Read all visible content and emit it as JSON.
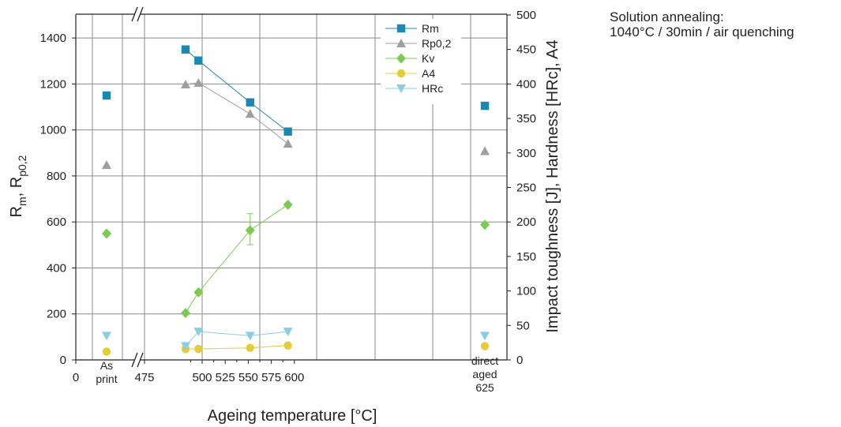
{
  "chart_data": {
    "type": "scatter",
    "xlabel": "Ageing temperature [°C]",
    "ylabel_left": {
      "main": "R",
      "sub1": "m",
      "sep": ", R",
      "sub2": "p0,2"
    },
    "ylabel_right": "Impact toughness [J], Hardness [HRc], A4",
    "ylim_left": [
      0,
      1500
    ],
    "ylim_right": [
      0,
      500
    ],
    "x_ticks": [
      "0",
      "475",
      "500",
      "525",
      "550",
      "575",
      "600"
    ],
    "y_ticks_left": [
      "0",
      "200",
      "400",
      "600",
      "800",
      "1000",
      "1200",
      "1400"
    ],
    "y_ticks_right": [
      "0",
      "50",
      "100",
      "150",
      "200",
      "250",
      "300",
      "350",
      "400",
      "450",
      "500"
    ],
    "x_extra_labels": {
      "as_print": [
        "As",
        "print"
      ],
      "direct_aged": [
        "direct",
        "aged",
        "625"
      ]
    },
    "grid": true,
    "legend_position": "top-right",
    "series": [
      {
        "name": "Rm",
        "axis": "left",
        "color": "#1a88b5",
        "marker": "square",
        "as_print": 1150,
        "ageing": [
          [
            482,
            1350
          ],
          [
            496,
            1302
          ],
          [
            552,
            1120
          ],
          [
            593,
            993
          ]
        ],
        "direct_aged_625": 1105
      },
      {
        "name": "Rp0,2",
        "axis": "left",
        "color": "#9e9e9e",
        "marker": "triangle-up",
        "as_print": 848,
        "ageing": [
          [
            482,
            1198
          ],
          [
            496,
            1205
          ],
          [
            552,
            1070
          ],
          [
            593,
            940
          ]
        ],
        "direct_aged_625": 908
      },
      {
        "name": "Kv",
        "axis": "right",
        "color": "#7acc50",
        "marker": "diamond",
        "as_print": 183,
        "ageing": [
          [
            482,
            68
          ],
          [
            496,
            98
          ],
          [
            552,
            188
          ],
          [
            593,
            225
          ]
        ],
        "direct_aged_625": 196,
        "error_bar": {
          "x": 552,
          "low": 167,
          "high": 212
        }
      },
      {
        "name": "A4",
        "axis": "right",
        "color": "#e3cc35",
        "marker": "circle",
        "as_print": 12,
        "ageing": [
          [
            482,
            16
          ],
          [
            496,
            16
          ],
          [
            552,
            17.5
          ],
          [
            593,
            21
          ]
        ],
        "direct_aged_625": 20
      },
      {
        "name": "HRc",
        "axis": "right",
        "color": "#8ccde3",
        "marker": "triangle-down",
        "as_print": 35,
        "ageing": [
          [
            482,
            20
          ],
          [
            496,
            41
          ],
          [
            552,
            35
          ],
          [
            593,
            41
          ]
        ],
        "direct_aged_625": 35
      }
    ]
  },
  "annotation": {
    "line1": "Solution annealing:",
    "line2": "1040°C / 30min / air quenching"
  }
}
